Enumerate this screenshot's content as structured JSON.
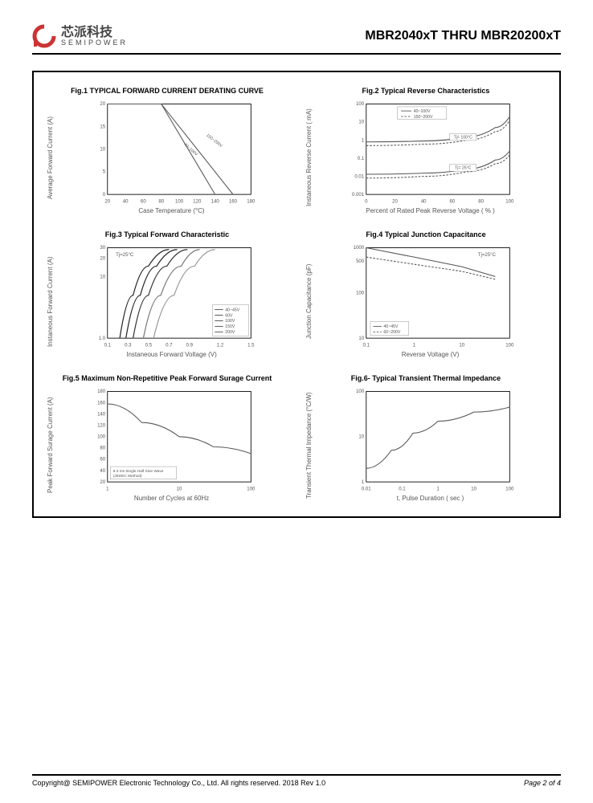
{
  "header": {
    "company_cn": "芯派科技",
    "company_en": "SEMIPOWER",
    "part_number": "MBR2040xT  THRU   MBR20200xT",
    "logo_color": "#cc3333"
  },
  "footer": {
    "copyright": "Copyright@ SEMIPOWER Electronic Technology Co., Ltd.  All rights reserved.  2018  Rev  1.0",
    "page": "Page 2 of 4"
  },
  "fig1": {
    "title": "Fig.1  TYPICAL FORWARD CURRENT DERATING CURVE",
    "ylabel": "Average Forward Current  (A)",
    "xlabel": "Case Temperature (°C)",
    "xlim": [
      20,
      180
    ],
    "xticks": [
      20,
      40,
      60,
      80,
      100,
      120,
      140,
      160,
      180
    ],
    "ylim": [
      0,
      20
    ],
    "yticks": [
      0,
      5,
      10,
      15,
      20
    ],
    "series": [
      {
        "label": "150~200V",
        "color": "#555",
        "points": [
          [
            20,
            20
          ],
          [
            80,
            20
          ],
          [
            160,
            0
          ]
        ]
      },
      {
        "label": "40~100V",
        "color": "#555",
        "points": [
          [
            20,
            20
          ],
          [
            80,
            20
          ],
          [
            140,
            0
          ]
        ]
      }
    ],
    "annot1": "150~200V",
    "annot2": "40~100V",
    "line_color": "#555",
    "grid_color": "#aaa",
    "bg": "#fff",
    "line_width": 1.2
  },
  "fig2": {
    "title": "Fig.2  Typical Reverse Characteristics",
    "ylabel": "Instaneous Reverse Current ( mA)",
    "xlabel": "Percent of Rated Peak Reverse Voltage ( % )",
    "xlim": [
      0,
      100
    ],
    "xticks": [
      0,
      20,
      40,
      60,
      80,
      100
    ],
    "ylim": [
      0.001,
      100
    ],
    "yticks_log": [
      0.001,
      0.01,
      0.1,
      1,
      10,
      100
    ],
    "legend": [
      "40~100V",
      "150~200V"
    ],
    "annot_a": "Tj= 100°C",
    "annot_b": "Tj= 25°C",
    "series": [
      {
        "label": "40-100 100C",
        "dash": false,
        "color": "#555",
        "points": [
          [
            0,
            0.8
          ],
          [
            40,
            0.9
          ],
          [
            70,
            1.5
          ],
          [
            90,
            5
          ],
          [
            100,
            20
          ]
        ]
      },
      {
        "label": "150-200 100C",
        "dash": true,
        "color": "#555",
        "points": [
          [
            0,
            0.5
          ],
          [
            40,
            0.6
          ],
          [
            70,
            1.0
          ],
          [
            90,
            3
          ],
          [
            100,
            12
          ]
        ]
      },
      {
        "label": "40-100 25C",
        "dash": false,
        "color": "#555",
        "points": [
          [
            0,
            0.013
          ],
          [
            40,
            0.015
          ],
          [
            70,
            0.025
          ],
          [
            90,
            0.08
          ],
          [
            100,
            0.25
          ]
        ]
      },
      {
        "label": "150-200 25C",
        "dash": true,
        "color": "#555",
        "points": [
          [
            0,
            0.008
          ],
          [
            40,
            0.01
          ],
          [
            70,
            0.018
          ],
          [
            90,
            0.05
          ],
          [
            100,
            0.15
          ]
        ]
      }
    ],
    "grid_color": "#aaa",
    "line_width": 1.2
  },
  "fig3": {
    "title": "Fig.3  Typical Forward Characteristic",
    "ylabel": "Instaneous Forward Current  (A)",
    "xlabel": "Instaneous Forward Voltage (V)",
    "xlim": [
      0.1,
      1.5
    ],
    "xticks": [
      0.1,
      0.3,
      0.5,
      0.7,
      0.9,
      1.2,
      1.5
    ],
    "ylim": [
      1,
      30
    ],
    "yticks_log": [
      1,
      10,
      20,
      30
    ],
    "annot": "Tj=25°C",
    "legend": [
      "40~45V",
      "60V",
      "100V",
      "150V",
      "200V"
    ],
    "series": [
      {
        "color": "#222",
        "points": [
          [
            0.22,
            1
          ],
          [
            0.35,
            5
          ],
          [
            0.5,
            15
          ],
          [
            0.7,
            28
          ]
        ]
      },
      {
        "color": "#222",
        "points": [
          [
            0.28,
            1
          ],
          [
            0.42,
            5
          ],
          [
            0.58,
            15
          ],
          [
            0.78,
            28
          ]
        ]
      },
      {
        "color": "#333",
        "points": [
          [
            0.35,
            1
          ],
          [
            0.5,
            5
          ],
          [
            0.68,
            15
          ],
          [
            0.88,
            28
          ]
        ]
      },
      {
        "color": "#777",
        "points": [
          [
            0.45,
            1
          ],
          [
            0.62,
            5
          ],
          [
            0.82,
            15
          ],
          [
            1.0,
            28
          ]
        ]
      },
      {
        "color": "#999",
        "points": [
          [
            0.55,
            1
          ],
          [
            0.75,
            5
          ],
          [
            0.95,
            15
          ],
          [
            1.15,
            28
          ]
        ]
      }
    ],
    "grid_color": "#aaa",
    "line_width": 1.4
  },
  "fig4": {
    "title": "Fig.4   Typical Junction Capacitance",
    "ylabel": "Junction Capacitance (pF)",
    "xlabel": "Reverse  Voltage (V)",
    "xlim": [
      0.1,
      100
    ],
    "xticks_log": [
      0.1,
      1,
      10,
      100
    ],
    "ylim": [
      10,
      1000
    ],
    "yticks_log": [
      10,
      100,
      500,
      1000
    ],
    "annot": "Tj=25°C",
    "legend": [
      "40~45V",
      "60~200V"
    ],
    "series": [
      {
        "dash": false,
        "color": "#555",
        "points": [
          [
            0.1,
            1000
          ],
          [
            1,
            620
          ],
          [
            10,
            380
          ],
          [
            50,
            230
          ]
        ]
      },
      {
        "dash": true,
        "color": "#555",
        "points": [
          [
            0.1,
            620
          ],
          [
            1,
            430
          ],
          [
            10,
            300
          ],
          [
            50,
            200
          ]
        ]
      }
    ],
    "grid_color": "#aaa",
    "line_width": 1.2
  },
  "fig5": {
    "title": "Fig.5  Maximum Non-Repetitive Peak Forward Surage Current",
    "ylabel": "Peak Forward Surage Current (A)",
    "xlabel": "Number of Cycles at 60Hz",
    "xlim": [
      1,
      100
    ],
    "xticks_log": [
      1,
      10,
      100
    ],
    "ylim": [
      20,
      180
    ],
    "yticks": [
      20,
      40,
      60,
      80,
      100,
      120,
      140,
      160,
      180
    ],
    "note": "8.3 ms Single Half Sine Wave (JEDEC Method)",
    "series": [
      {
        "color": "#555",
        "points": [
          [
            1,
            158
          ],
          [
            3,
            125
          ],
          [
            10,
            100
          ],
          [
            30,
            82
          ],
          [
            100,
            70
          ]
        ]
      }
    ],
    "grid_color": "#aaa",
    "line_width": 1.2
  },
  "fig6": {
    "title": "Fig.6- Typical Transient Thermal Impedance",
    "ylabel": "Transient Thermal Impedance  (°C/W)",
    "xlabel": "t, Pulse Duration ( sec )",
    "xlim": [
      0.01,
      100
    ],
    "xticks_log": [
      0.01,
      0.1,
      1,
      10,
      100
    ],
    "ylim": [
      1,
      100
    ],
    "yticks_log": [
      1,
      10,
      100
    ],
    "series": [
      {
        "color": "#555",
        "points": [
          [
            0.01,
            2
          ],
          [
            0.05,
            5
          ],
          [
            0.2,
            12
          ],
          [
            1,
            22
          ],
          [
            10,
            35
          ],
          [
            100,
            45
          ]
        ]
      }
    ],
    "grid_color": "#aaa",
    "line_width": 1.2
  }
}
